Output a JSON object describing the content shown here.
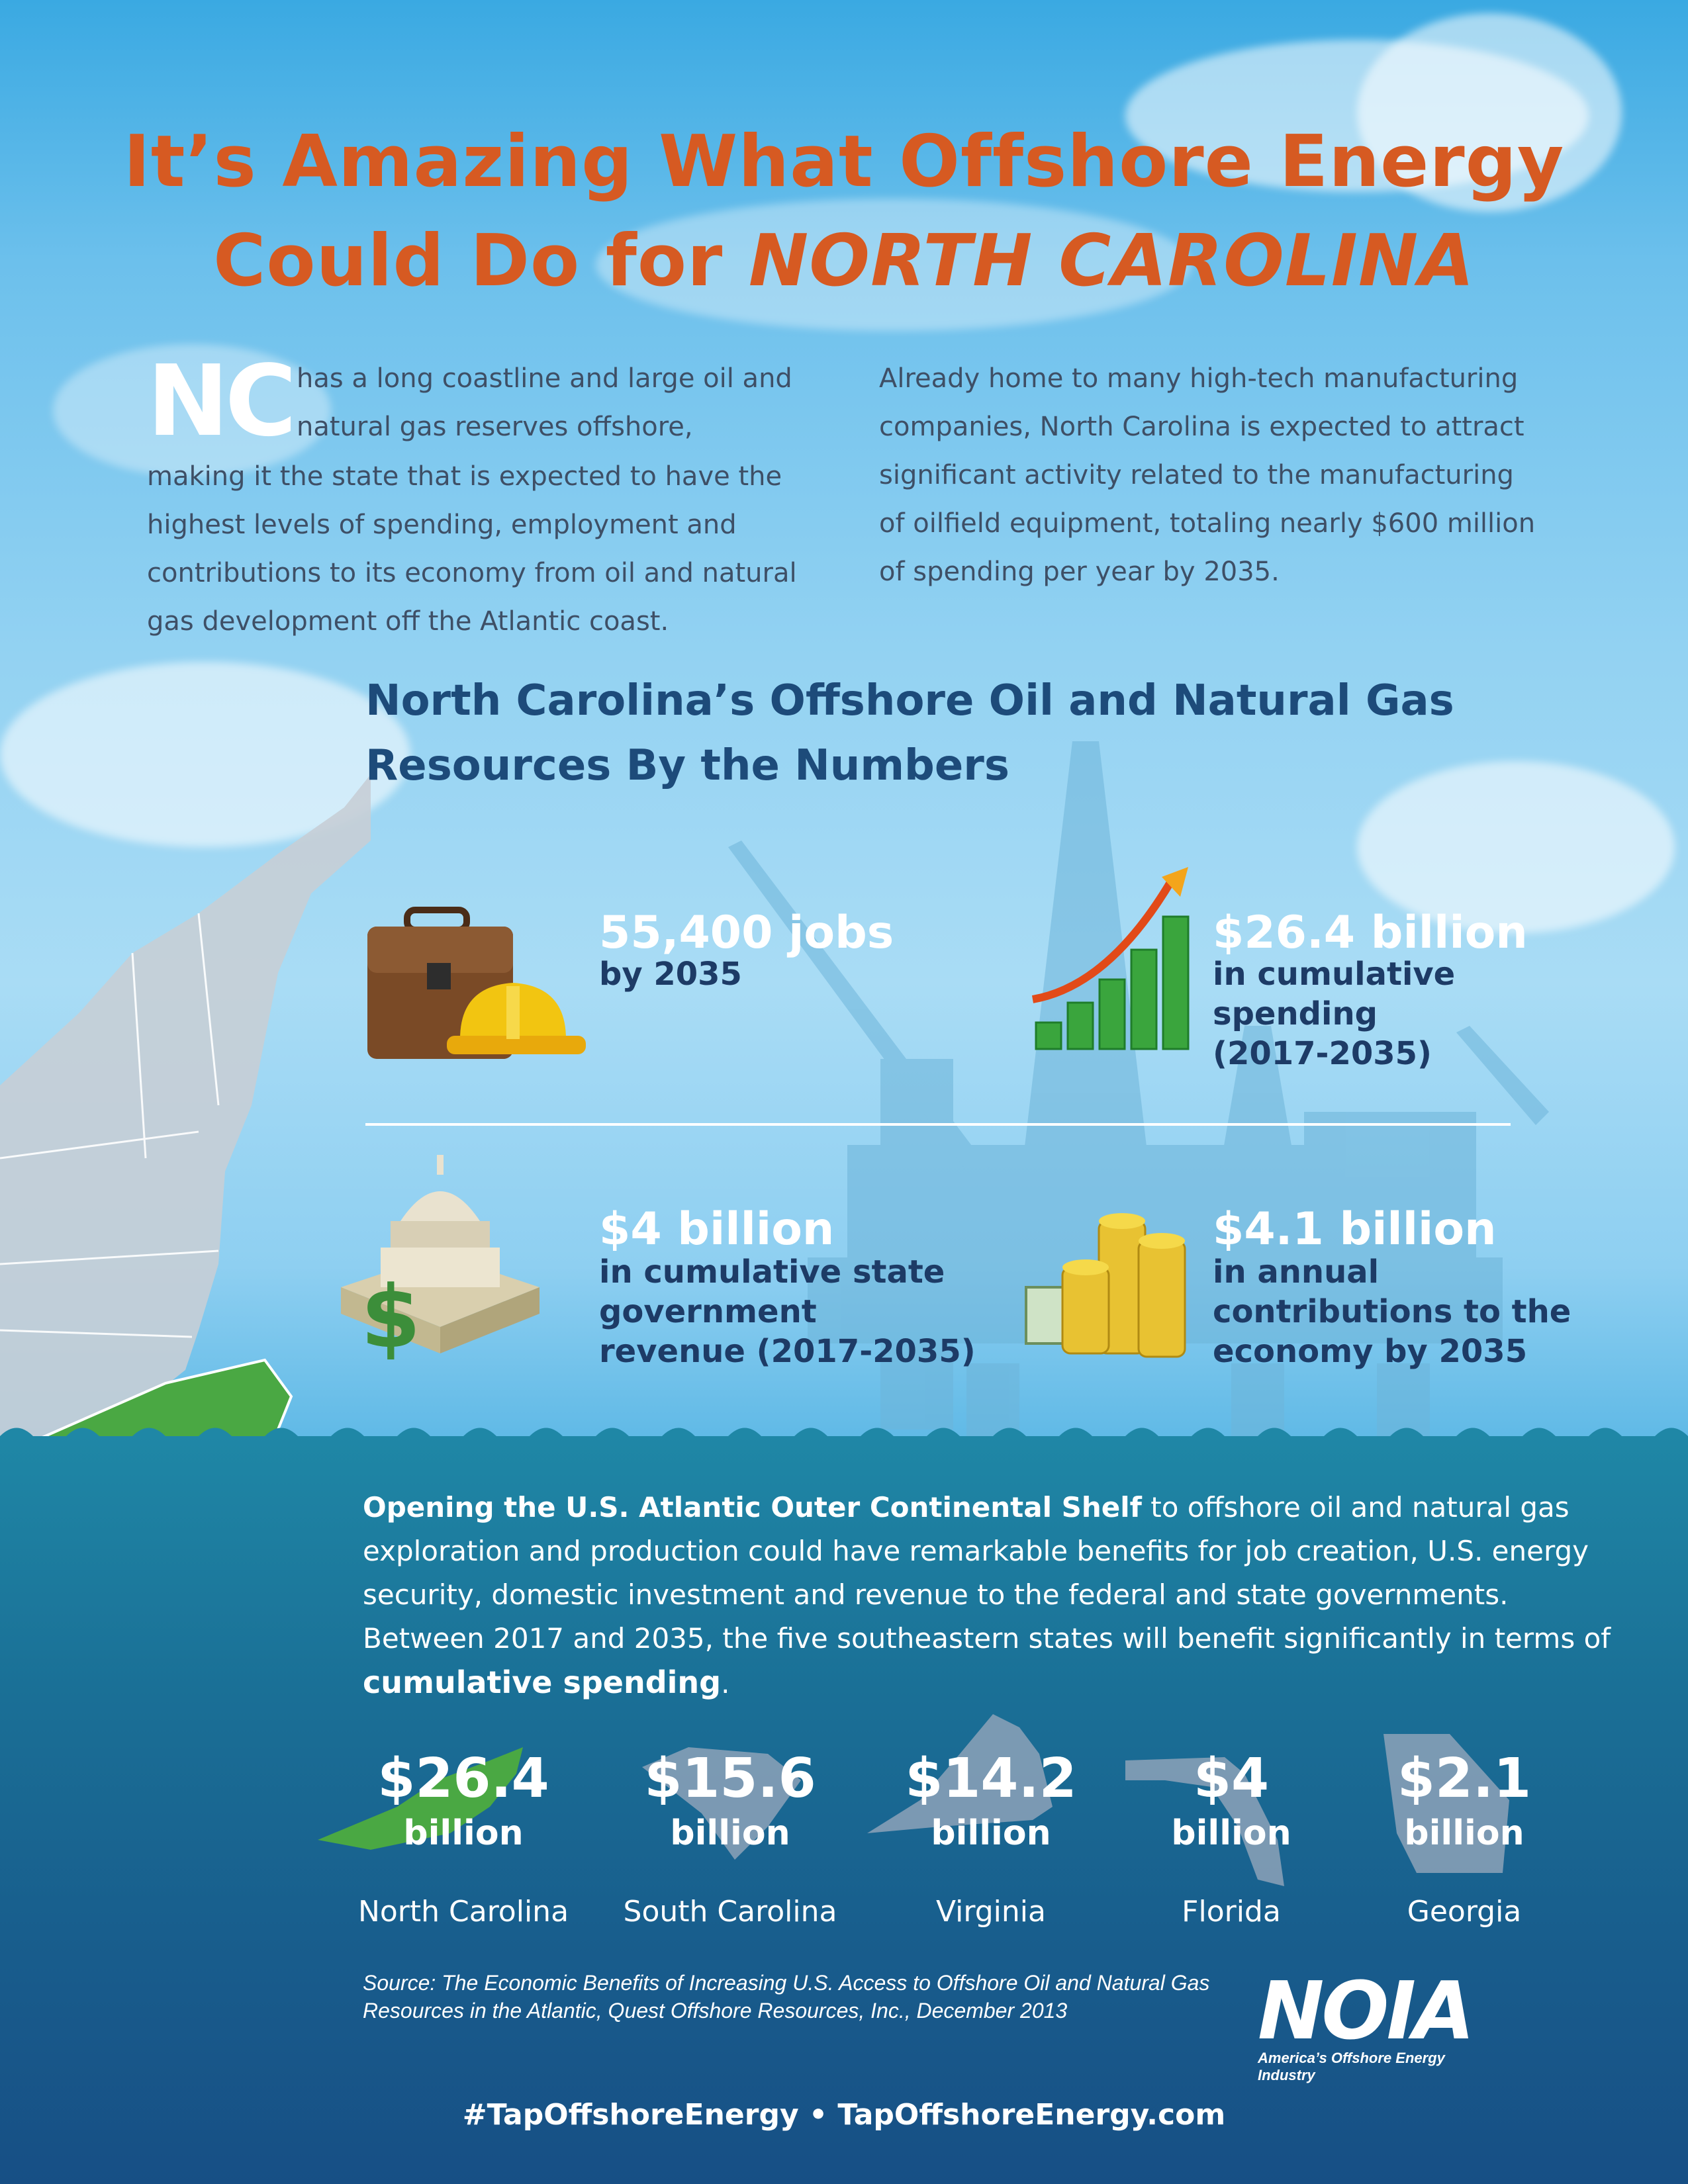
{
  "title": {
    "line1": "It’s Amazing What Offshore Energy",
    "line2_prefix": "Could Do for ",
    "line2_emphasis": "NORTH CAROLINA"
  },
  "intro": {
    "dropcap": "NC",
    "col1_first": "has a long coastline and large oil and natural gas reserves offshore,",
    "col1_rest": "making it the state that is expected to have the highest levels of spending, employment and contributions to its economy from oil and natural gas development off the Atlantic coast.",
    "col2": "Already home to many high-tech manufacturing companies, North Carolina is expected to attract significant activity related to the manufacturing of oilfield equipment, totaling nearly $600 million of spending per year by 2035."
  },
  "numbers": {
    "heading": "North Carolina’s Offshore Oil and Natural Gas Resources By the Numbers",
    "jobs": {
      "value": "55,400 jobs",
      "label": "by 2035",
      "icon": "briefcase-hardhat-icon"
    },
    "spending": {
      "value": "$26.4 billion",
      "label": "in cumulative\nspending\n(2017-2035)",
      "icon": "growth-bar-chart-icon"
    },
    "revenue": {
      "value": "$4 billion",
      "label": "in cumulative state\ngovernment\nrevenue (2017-2035)",
      "icon": "capitol-dollar-icon"
    },
    "economy": {
      "value": "$4.1 billion",
      "label": "in annual\ncontributions to the\neconomy by 2035",
      "icon": "coins-banknote-icon"
    }
  },
  "ocs": {
    "bold_lead": "Opening the U.S. Atlantic Outer Continental Shelf",
    "text": " to offshore oil and natural gas exploration and production could have remarkable benefits for job creation, U.S. energy security, domestic investment and revenue to the federal and state governments. Between 2017 and 2035, the five southeastern states will benefit significantly in terms of ",
    "bold_tail": "cumulative spending",
    "end": "."
  },
  "states": [
    {
      "amount": "$26.4",
      "unit": "billion",
      "name": "North Carolina",
      "color": "#4aa843"
    },
    {
      "amount": "$15.6",
      "unit": "billion",
      "name": "South Carolina",
      "color": "#8da2b8"
    },
    {
      "amount": "$14.2",
      "unit": "billion",
      "name": "Virginia",
      "color": "#8da2b8"
    },
    {
      "amount": "$4",
      "unit": "billion",
      "name": "Florida",
      "color": "#8da2b8"
    },
    {
      "amount": "$2.1",
      "unit": "billion",
      "name": "Georgia",
      "color": "#8da2b8"
    }
  ],
  "source": "Source: The Economic Benefits of Increasing U.S. Access to Offshore Oil and Natural Gas Resources in the Atlantic, Quest Offshore Resources, Inc., December 2013",
  "logo": {
    "mark": "NOIA",
    "tagline": "America’s Offshore Energy Industry"
  },
  "footer": "#TapOffshoreEnergy • TapOffshoreEnergy.com",
  "colors": {
    "title": "#d65a22",
    "heading": "#1d4b7a",
    "nc_green": "#4aa843",
    "sea": "#1a6f96"
  }
}
